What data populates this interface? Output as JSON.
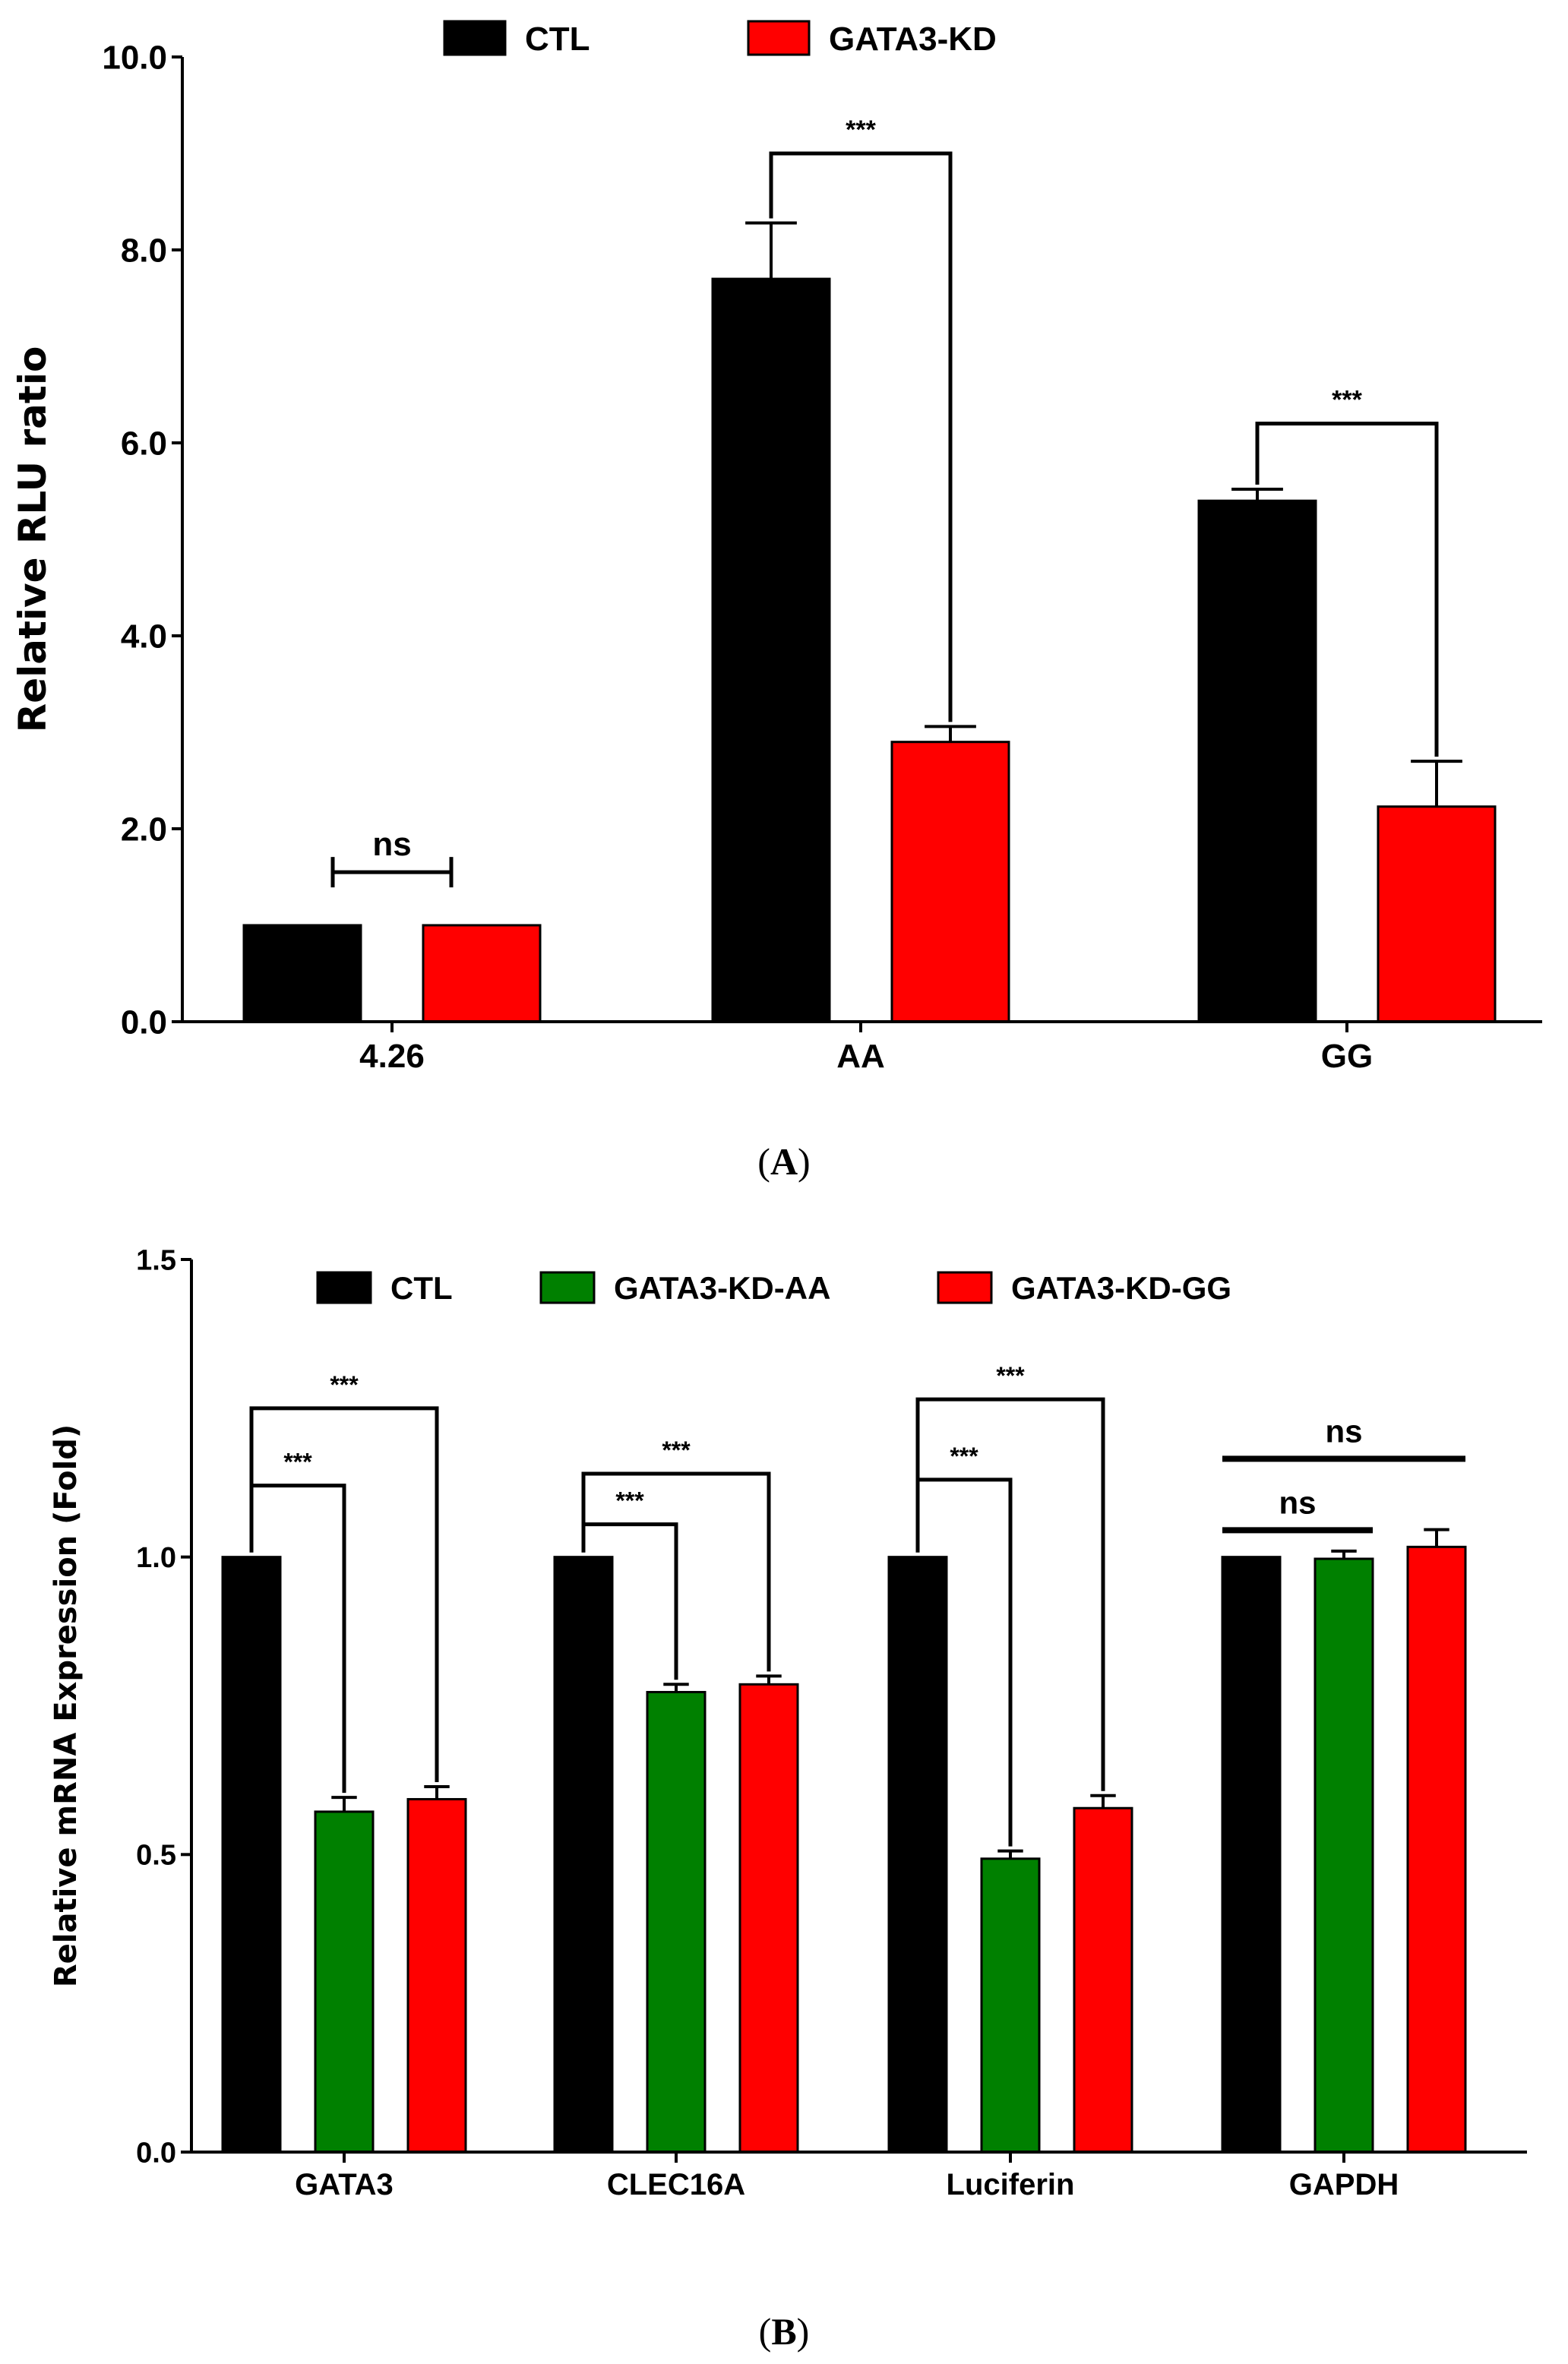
{
  "chart_data": [
    {
      "type": "bar",
      "panel_label": "A",
      "title": "",
      "xlabel": "",
      "ylabel": "Relative RLU ratio",
      "ylim": [
        0,
        10
      ],
      "yticks": [
        "0.0",
        "2.0",
        "4.0",
        "6.0",
        "8.0",
        "10.0"
      ],
      "categories": [
        "4.26",
        "AA",
        "GG"
      ],
      "legend": "top",
      "series": [
        {
          "name": "CTL",
          "color": "#000000",
          "values": [
            1.0,
            7.7,
            5.4
          ],
          "errors": [
            0,
            0.58,
            0.12
          ]
        },
        {
          "name": "GATA3-KD",
          "color": "#ff0000",
          "values": [
            1.0,
            2.9,
            2.23
          ],
          "errors": [
            0,
            0.16,
            0.47
          ]
        }
      ],
      "annotations": [
        {
          "category": 0,
          "from": 0,
          "to": 1,
          "level": 1.55,
          "style": "capped",
          "text": "ns"
        },
        {
          "category": 1,
          "from": 0,
          "to": 1,
          "level": 9.0,
          "style": "bracket",
          "text": "***"
        },
        {
          "category": 2,
          "from": 0,
          "to": 1,
          "level": 6.2,
          "style": "bracket",
          "text": "***"
        }
      ]
    },
    {
      "type": "bar",
      "panel_label": "B",
      "title": "",
      "xlabel": "",
      "ylabel": "Relative mRNA Expression (Fold)",
      "ylim": [
        0,
        1.5
      ],
      "yticks": [
        "0.0",
        "0.5",
        "1.0",
        "1.5"
      ],
      "categories": [
        "GATA3",
        "CLEC16A",
        "Luciferin",
        "GAPDH"
      ],
      "legend": "top",
      "series": [
        {
          "name": "CTL",
          "color": "#000000",
          "values": [
            1.0,
            1.0,
            1.0,
            1.0
          ],
          "errors": [
            0,
            0,
            0,
            0
          ]
        },
        {
          "name": "GATA3-KD-AA",
          "color": "#008000",
          "values": [
            0.572,
            0.773,
            0.493,
            0.997
          ],
          "errors": [
            0.024,
            0.013,
            0.013,
            0.013
          ]
        },
        {
          "name": "GATA3-KD-GG",
          "color": "#ff0000",
          "values": [
            0.593,
            0.786,
            0.578,
            1.017
          ],
          "errors": [
            0.021,
            0.014,
            0.021,
            0.029
          ]
        }
      ],
      "annotations": [
        {
          "category": 0,
          "from": 0,
          "to": 1,
          "level": 1.12,
          "style": "bracket",
          "text": "***"
        },
        {
          "category": 0,
          "from": 0,
          "to": 2,
          "level": 1.25,
          "style": "bracket",
          "text": "***"
        },
        {
          "category": 1,
          "from": 0,
          "to": 1,
          "level": 1.055,
          "style": "bracket",
          "text": "***"
        },
        {
          "category": 1,
          "from": 0,
          "to": 2,
          "level": 1.14,
          "style": "bracket",
          "text": "***"
        },
        {
          "category": 2,
          "from": 0,
          "to": 1,
          "level": 1.13,
          "style": "bracket",
          "text": "***"
        },
        {
          "category": 2,
          "from": 0,
          "to": 2,
          "level": 1.265,
          "style": "bracket",
          "text": "***"
        },
        {
          "category": 3,
          "from": 0,
          "to": 1,
          "level": 1.045,
          "style": "line",
          "text": "ns"
        },
        {
          "category": 3,
          "from": 0,
          "to": 2,
          "level": 1.165,
          "style": "line",
          "text": "ns"
        }
      ]
    }
  ]
}
